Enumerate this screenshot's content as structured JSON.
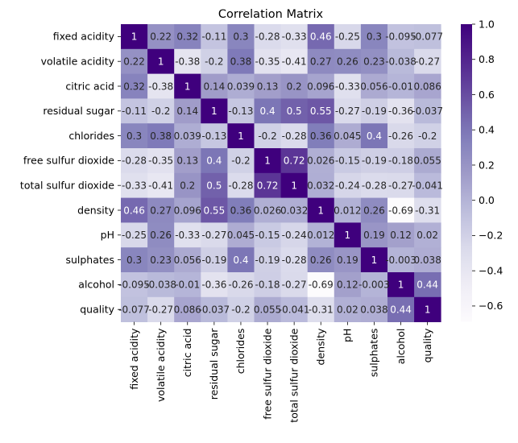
{
  "chart_data": {
    "type": "heatmap",
    "title": "Correlation Matrix",
    "xlabel": "",
    "ylabel": "",
    "labels": [
      "fixed acidity",
      "volatile acidity",
      "citric acid",
      "residual sugar",
      "chlorides",
      "free sulfur dioxide",
      "total sulfur dioxide",
      "density",
      "pH",
      "sulphates",
      "alcohol",
      "quality"
    ],
    "values": [
      [
        1,
        0.22,
        0.32,
        -0.11,
        0.3,
        -0.28,
        -0.33,
        0.46,
        -0.25,
        0.3,
        -0.095,
        -0.077
      ],
      [
        0.22,
        1,
        -0.38,
        -0.2,
        0.38,
        -0.35,
        -0.41,
        0.27,
        0.26,
        0.23,
        -0.038,
        -0.27
      ],
      [
        0.32,
        -0.38,
        1,
        0.14,
        0.039,
        0.13,
        0.2,
        0.096,
        -0.33,
        0.056,
        -0.01,
        0.086
      ],
      [
        -0.11,
        -0.2,
        0.14,
        1,
        -0.13,
        0.4,
        0.5,
        0.55,
        -0.27,
        -0.19,
        -0.36,
        -0.037
      ],
      [
        0.3,
        0.38,
        0.039,
        -0.13,
        1,
        -0.2,
        -0.28,
        0.36,
        0.045,
        0.4,
        -0.26,
        -0.2
      ],
      [
        -0.28,
        -0.35,
        0.13,
        0.4,
        -0.2,
        1,
        0.72,
        0.026,
        -0.15,
        -0.19,
        -0.18,
        0.055
      ],
      [
        -0.33,
        -0.41,
        0.2,
        0.5,
        -0.28,
        0.72,
        1,
        0.032,
        -0.24,
        -0.28,
        -0.27,
        -0.041
      ],
      [
        0.46,
        0.27,
        0.096,
        0.55,
        0.36,
        0.026,
        0.032,
        1,
        0.012,
        0.26,
        -0.69,
        -0.31
      ],
      [
        -0.25,
        0.26,
        -0.33,
        -0.27,
        0.045,
        -0.15,
        -0.24,
        0.012,
        1,
        0.19,
        0.12,
        0.02
      ],
      [
        0.3,
        0.23,
        0.056,
        -0.19,
        0.4,
        -0.19,
        -0.28,
        0.26,
        0.19,
        1,
        -0.003,
        0.038
      ],
      [
        -0.095,
        -0.038,
        -0.01,
        -0.36,
        -0.26,
        -0.18,
        -0.27,
        -0.69,
        0.12,
        -0.003,
        1,
        0.44
      ],
      [
        -0.077,
        -0.27,
        0.086,
        -0.037,
        -0.2,
        0.055,
        -0.041,
        -0.31,
        0.02,
        0.038,
        0.44,
        1
      ]
    ],
    "colormap": "Purples",
    "colorbar": {
      "range": [
        -0.69,
        1
      ],
      "ticks": [
        -0.6,
        -0.4,
        -0.2,
        0.0,
        0.2,
        0.4,
        0.6,
        0.8,
        1.0
      ],
      "tick_labels": [
        "−0.6",
        "−0.4",
        "−0.2",
        "0.0",
        "0.2",
        "0.4",
        "0.6",
        "0.8",
        "1.0"
      ]
    },
    "annotated": true,
    "grid": false
  }
}
